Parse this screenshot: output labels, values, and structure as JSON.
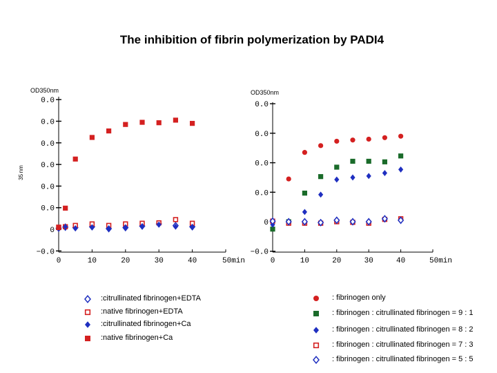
{
  "title": "The inhibition of fibrin polymerization by PADI4",
  "colors": {
    "red": "#d42020",
    "green": "#1a6b2a",
    "blue": "#1f2fc0"
  },
  "chart_data": [
    {
      "type": "scatter",
      "ylabel": "OD350nm",
      "side_label": "35 nm",
      "xunit": "min",
      "xlim": [
        0,
        50
      ],
      "ylim": [
        -0.01,
        0.06
      ],
      "xticks": [
        0,
        10,
        20,
        30,
        40,
        50
      ],
      "xtick_labels": [
        "0",
        "10",
        "20",
        "30",
        "40",
        "50min"
      ],
      "yticks": [
        -0.01,
        0,
        0.01,
        0.02,
        0.03,
        0.04,
        0.05,
        0.06
      ],
      "ytick_labels": [
        "−0.0",
        "0",
        "0.0",
        "0.0",
        "0.0",
        "0.0",
        "0.0",
        "0.0"
      ],
      "series": [
        {
          "name": ":citrullinated fibrinogen+EDTA",
          "marker": "diamond-open",
          "color": "#1f2fc0",
          "x": [
            0,
            2,
            5,
            10,
            15,
            20,
            25,
            30,
            35,
            40
          ],
          "y": [
            0.0005,
            0.001,
            0.0008,
            0.0012,
            0.0003,
            0.0008,
            0.0015,
            0.0025,
            0.0017,
            0.0012
          ]
        },
        {
          "name": ":native fibrinogen+EDTA",
          "marker": "square-open",
          "color": "#d42020",
          "x": [
            0,
            2,
            5,
            10,
            15,
            20,
            25,
            30,
            35,
            40
          ],
          "y": [
            0.001,
            0.0012,
            0.0018,
            0.0025,
            0.0018,
            0.0025,
            0.0028,
            0.003,
            0.0045,
            0.0028
          ]
        },
        {
          "name": ":citrullinated fibrinogen+Ca",
          "marker": "diamond",
          "color": "#1f2fc0",
          "x": [
            0,
            2,
            5,
            10,
            15,
            20,
            25,
            30,
            35,
            40
          ],
          "y": [
            0.0005,
            0.0012,
            0.0005,
            0.001,
            0.0005,
            0.001,
            0.0015,
            0.0022,
            0.0012,
            0.0012
          ]
        },
        {
          "name": ":native fibrinogen+Ca",
          "marker": "square",
          "color": "#d42020",
          "x": [
            0,
            2,
            5,
            10,
            15,
            20,
            25,
            30,
            35,
            40
          ],
          "y": [
            0.0008,
            0.0098,
            0.0325,
            0.0425,
            0.0455,
            0.0485,
            0.0495,
            0.0493,
            0.0505,
            0.049
          ]
        }
      ]
    },
    {
      "type": "scatter",
      "ylabel": "OD350nm",
      "xunit": "min",
      "xlim": [
        0,
        50
      ],
      "ylim": [
        -0.01,
        0.04
      ],
      "xticks": [
        0,
        10,
        20,
        30,
        40,
        50
      ],
      "xtick_labels": [
        "0",
        "10",
        "20",
        "30",
        "40",
        "50min"
      ],
      "yticks": [
        -0.01,
        0,
        0.01,
        0.02,
        0.03,
        0.04
      ],
      "ytick_labels": [
        "−0.0",
        "0",
        "0.0",
        "0.0",
        "0.0",
        "0.0"
      ],
      "series": [
        {
          "name": ": fibrinogen only",
          "marker": "circle",
          "color": "#d42020",
          "x": [
            0,
            5,
            10,
            15,
            20,
            25,
            30,
            35,
            40
          ],
          "y": [
            0.0,
            0.0145,
            0.0235,
            0.0258,
            0.0273,
            0.0277,
            0.028,
            0.0285,
            0.029
          ]
        },
        {
          "name": ": fibrinogen : citrullinated fibrinogen = 9 : 1",
          "marker": "square",
          "color": "#1a6b2a",
          "x": [
            0,
            5,
            10,
            15,
            20,
            25,
            30,
            35,
            40
          ],
          "y": [
            -0.0025,
            0.0,
            0.0097,
            0.0153,
            0.0185,
            0.0205,
            0.0205,
            0.0203,
            0.0223
          ]
        },
        {
          "name": ": fibrinogen : citrullinated fibrinogen = 8 : 2",
          "marker": "diamond",
          "color": "#1f2fc0",
          "x": [
            0,
            5,
            10,
            15,
            20,
            25,
            30,
            35,
            40
          ],
          "y": [
            -0.001,
            0.0,
            0.0033,
            0.0092,
            0.0143,
            0.015,
            0.0155,
            0.0165,
            0.0177
          ]
        },
        {
          "name": ": fibrinogen : citrullinated fibrinogen = 7 : 3",
          "marker": "square-open",
          "color": "#d42020",
          "x": [
            0,
            5,
            10,
            15,
            20,
            25,
            30,
            35,
            40
          ],
          "y": [
            0.0002,
            -0.0005,
            -0.0005,
            -0.0005,
            0.0,
            -0.0002,
            -0.0005,
            0.0008,
            0.001
          ]
        },
        {
          "name": ": fibrinogen : citrullinated fibrinogen = 5 : 5",
          "marker": "diamond-open",
          "color": "#1f2fc0",
          "x": [
            0,
            5,
            10,
            15,
            20,
            25,
            30,
            35,
            40
          ],
          "y": [
            0.0002,
            0.0,
            0.0,
            -0.0003,
            0.0005,
            0.0,
            0.0,
            0.001,
            0.0005
          ]
        }
      ]
    }
  ]
}
